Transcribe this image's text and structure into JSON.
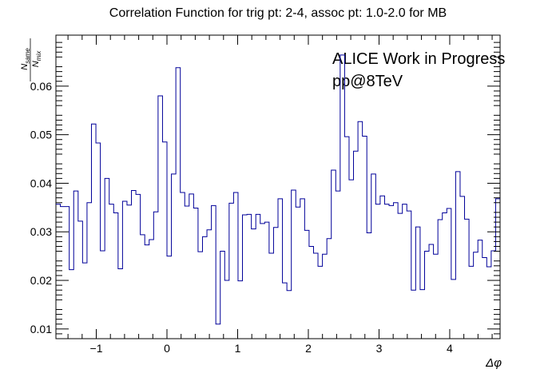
{
  "chart_data": {
    "type": "line",
    "style": "step-histogram",
    "title": "Correlation Function for trig pt: 2-4, assoc pt: 1.0-2.0 for MB",
    "xlabel": "Δφ",
    "ylabel": {
      "numerator": "N",
      "numerator_sub": "same",
      "denominator": "N",
      "denominator_sub": "mix"
    },
    "annotation_lines": [
      "ALICE Work in Progress",
      "pp@8TeV"
    ],
    "xlim": [
      -1.5708,
      4.7124
    ],
    "ylim": [
      0.008,
      0.0705
    ],
    "x_ticks": [
      "−1",
      "0",
      "1",
      "2",
      "3",
      "4"
    ],
    "x_tick_values": [
      -1,
      0,
      1,
      2,
      3,
      4
    ],
    "y_ticks": [
      "0.01",
      "0.02",
      "0.03",
      "0.04",
      "0.05",
      "0.06"
    ],
    "y_tick_values": [
      0.01,
      0.02,
      0.03,
      0.04,
      0.05,
      0.06
    ],
    "bins": 100,
    "values": [
      0.0357,
      0.0352,
      0.0352,
      0.0222,
      0.0384,
      0.0322,
      0.0236,
      0.036,
      0.0522,
      0.0483,
      0.0261,
      0.041,
      0.0357,
      0.0339,
      0.0224,
      0.0363,
      0.0355,
      0.0385,
      0.0377,
      0.0294,
      0.0273,
      0.0284,
      0.0341,
      0.058,
      0.0485,
      0.025,
      0.0419,
      0.0638,
      0.0381,
      0.0353,
      0.0378,
      0.0349,
      0.0259,
      0.029,
      0.0304,
      0.0354,
      0.011,
      0.026,
      0.02,
      0.0359,
      0.0381,
      0.0199,
      0.0335,
      0.0336,
      0.0306,
      0.0336,
      0.0317,
      0.032,
      0.0256,
      0.0309,
      0.0368,
      0.0195,
      0.0179,
      0.0386,
      0.0351,
      0.0368,
      0.0303,
      0.027,
      0.0256,
      0.0229,
      0.0254,
      0.0286,
      0.0427,
      0.0384,
      0.0664,
      0.0496,
      0.0407,
      0.0466,
      0.0527,
      0.0497,
      0.0298,
      0.0419,
      0.0357,
      0.0374,
      0.0357,
      0.0354,
      0.036,
      0.0338,
      0.0357,
      0.0343,
      0.018,
      0.031,
      0.0181,
      0.026,
      0.0274,
      0.0254,
      0.0325,
      0.0339,
      0.0348,
      0.0202,
      0.0424,
      0.0373,
      0.0326,
      0.0229,
      0.0258,
      0.0283,
      0.0247,
      0.0228,
      0.0261,
      0.0368
    ],
    "line_color": "#000099",
    "grid": false,
    "legend": "none"
  }
}
